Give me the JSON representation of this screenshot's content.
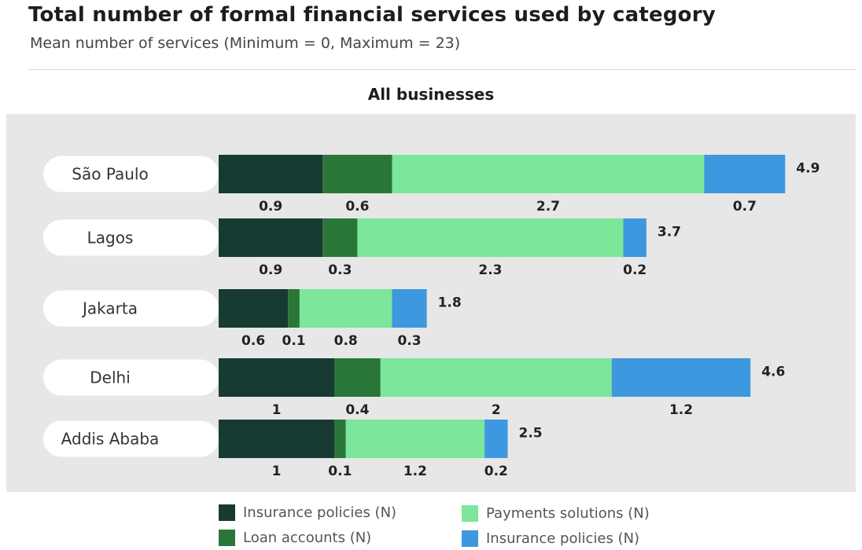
{
  "title": "Total number of formal financial services used by category",
  "subtitle": "Mean number of services (Minimum = 0, Maximum = 23)",
  "chart_data": {
    "type": "bar",
    "orientation": "horizontal",
    "stacked": true,
    "panel_title": "All businesses",
    "categories": [
      "São Paulo",
      "Lagos",
      "Jakarta",
      "Delhi",
      "Addis Ababa"
    ],
    "series": [
      {
        "name": "Insurance policies (N)",
        "color": "#173a33",
        "values": [
          0.9,
          0.9,
          0.6,
          1,
          1
        ]
      },
      {
        "name": "Loan accounts (N)",
        "color": "#2a7638",
        "values": [
          0.6,
          0.3,
          0.1,
          0.4,
          0.1
        ]
      },
      {
        "name": "Payments solutions (N)",
        "color": "#7ce69a",
        "values": [
          2.7,
          2.3,
          0.8,
          2,
          1.2
        ]
      },
      {
        "name": "Insurance policies (N)",
        "color": "#3d98e0",
        "values": [
          0.7,
          0.2,
          0.3,
          1.2,
          0.2
        ]
      }
    ],
    "value_labels": [
      [
        "0.9",
        "0.6",
        "2.7",
        "0.7"
      ],
      [
        "0.9",
        "0.3",
        "2.3",
        "0.2"
      ],
      [
        "0.6",
        "0.1",
        "0.8",
        "0.3"
      ],
      [
        "1",
        "0.4",
        "2",
        "1.2"
      ],
      [
        "1",
        "0.1",
        "1.2",
        "0.2"
      ]
    ],
    "totals": [
      "4.9",
      "3.7",
      "1.8",
      "4.6",
      "2.5"
    ],
    "grid": false,
    "legend_position": "bottom"
  }
}
